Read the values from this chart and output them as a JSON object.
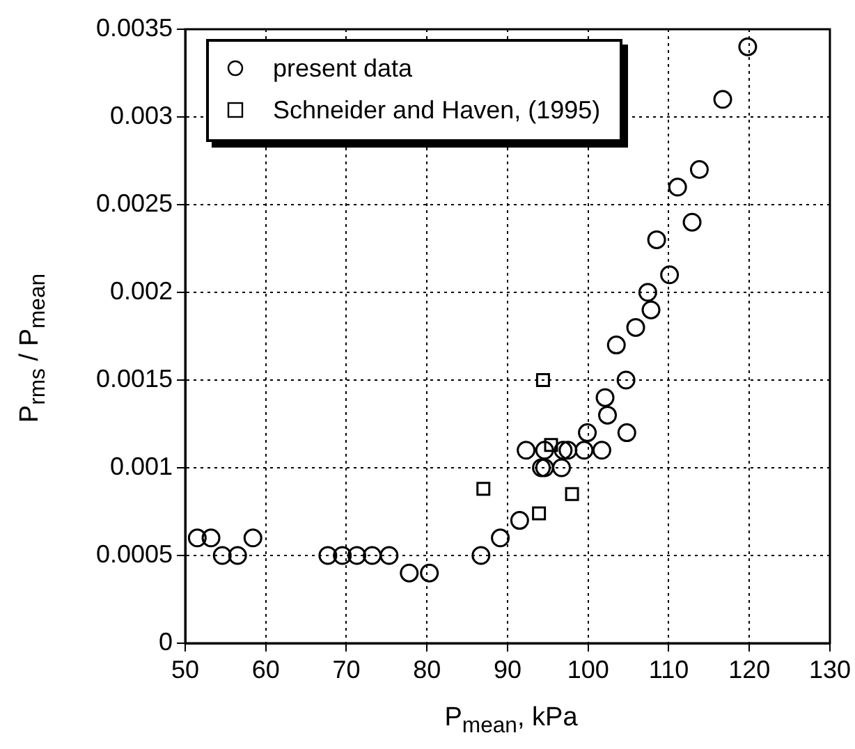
{
  "chart_data": {
    "type": "scatter",
    "xlabel": "P$_{mean}$, kPa",
    "ylabel": "P$_{rms}$ / P$_{mean}$",
    "series": [
      {
        "name": "present data",
        "color": "#000000",
        "marker": "circle",
        "x": [
          51.5,
          53.2,
          54.6,
          56.5,
          58.4,
          67.7,
          69.5,
          71.3,
          73.2,
          75.3,
          77.8,
          80.3,
          86.7,
          89.1,
          91.5,
          92.3,
          94.6,
          94.2,
          94.6,
          96.7,
          96.9,
          97.5,
          99.5,
          99.9,
          101.7,
          102.4,
          102.1,
          104.8,
          104.7,
          103.5,
          105.9,
          107.4,
          107.8,
          110.1,
          108.5,
          112.9,
          111.1,
          113.8,
          116.7,
          119.8
        ],
        "values": [
          0.0006,
          0.0006,
          0.0005,
          0.0005,
          0.0006,
          0.0005,
          0.0005,
          0.0005,
          0.0005,
          0.0005,
          0.0004,
          0.0004,
          0.0005,
          0.0006,
          0.0007,
          0.0011,
          0.0011,
          0.001,
          0.001,
          0.001,
          0.0011,
          0.0011,
          0.0011,
          0.0012,
          0.0011,
          0.0013,
          0.0014,
          0.0012,
          0.0015,
          0.0017,
          0.0018,
          0.002,
          0.0019,
          0.0021,
          0.0023,
          0.0024,
          0.0026,
          0.0027,
          0.0031,
          0.0034
        ]
      },
      {
        "name": "Schneider and Haven, (1995)",
        "color": "#000000",
        "marker": "square",
        "x": [
          87.0,
          93.9,
          94.4,
          95.4,
          98.0
        ],
        "values": [
          0.00088,
          0.00074,
          0.0015,
          0.00113,
          0.00085
        ]
      }
    ],
    "xlim": [
      50,
      130
    ],
    "xticks": [
      50,
      60,
      70,
      80,
      90,
      100,
      110,
      120,
      130
    ],
    "ylim": [
      0,
      0.0035
    ],
    "yticks": [
      0,
      0.0005,
      0.001,
      0.0015,
      0.002,
      0.0025,
      0.003,
      0.0035
    ],
    "grid": true,
    "line_style": "dotted",
    "legend": "top left"
  }
}
